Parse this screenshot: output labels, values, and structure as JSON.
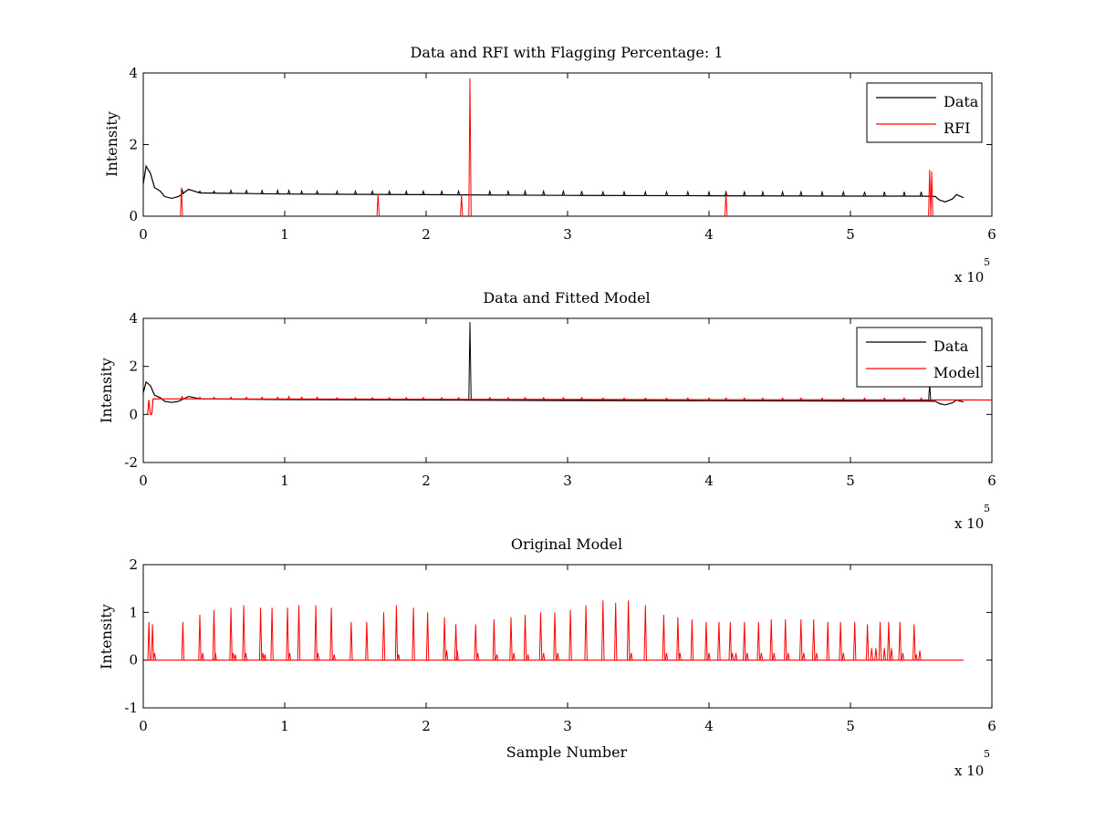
{
  "colors": {
    "data": "#000000",
    "rfi": "#ff0000",
    "model": "#ff0000",
    "background": "#ffffff"
  },
  "chart_data": [
    {
      "type": "line",
      "title": "Data and RFI with Flagging Percentage: 1",
      "xlabel": "",
      "ylabel": "Intensity",
      "xlim": [
        0,
        600000
      ],
      "ylim": [
        0,
        4
      ],
      "xticks": [
        0,
        1,
        2,
        3,
        4,
        5,
        6
      ],
      "yticks": [
        0,
        2,
        4
      ],
      "x_multiplier": {
        "base": "x 10",
        "exponent": "5"
      },
      "grid": false,
      "legend": {
        "placement": "top-right",
        "entries": [
          "Data",
          "RFI"
        ]
      },
      "series": [
        {
          "name": "Data",
          "color": "#000000",
          "baseline": [
            [
              0,
              0.9
            ],
            [
              2000,
              1.4
            ],
            [
              5000,
              1.2
            ],
            [
              8000,
              0.8
            ],
            [
              12000,
              0.7
            ],
            [
              15000,
              0.55
            ],
            [
              20000,
              0.5
            ],
            [
              25000,
              0.55
            ],
            [
              32000,
              0.75
            ],
            [
              40000,
              0.65
            ],
            [
              100000,
              0.62
            ],
            [
              200000,
              0.6
            ],
            [
              300000,
              0.58
            ],
            [
              400000,
              0.57
            ],
            [
              500000,
              0.56
            ],
            [
              550000,
              0.56
            ],
            [
              560000,
              0.55
            ],
            [
              563000,
              0.45
            ],
            [
              567000,
              0.4
            ],
            [
              572000,
              0.48
            ],
            [
              575000,
              0.6
            ],
            [
              578000,
              0.55
            ],
            [
              580000,
              0.52
            ]
          ],
          "spikes": [
            [
              27500,
              0.75
            ],
            [
              40000,
              0.7
            ],
            [
              50000,
              0.7
            ],
            [
              62000,
              0.72
            ],
            [
              73000,
              0.72
            ],
            [
              84000,
              0.72
            ],
            [
              95000,
              0.72
            ],
            [
              103000,
              0.72
            ],
            [
              112000,
              0.7
            ],
            [
              123000,
              0.7
            ],
            [
              137000,
              0.7
            ],
            [
              150000,
              0.7
            ],
            [
              162000,
              0.7
            ],
            [
              174000,
              0.7
            ],
            [
              186000,
              0.7
            ],
            [
              198000,
              0.7
            ],
            [
              211000,
              0.7
            ],
            [
              223000,
              0.7
            ],
            [
              245000,
              0.7
            ],
            [
              258000,
              0.7
            ],
            [
              270000,
              0.7
            ],
            [
              283000,
              0.7
            ],
            [
              297000,
              0.7
            ],
            [
              310000,
              0.7
            ],
            [
              325000,
              0.68
            ],
            [
              340000,
              0.68
            ],
            [
              355000,
              0.68
            ],
            [
              370000,
              0.68
            ],
            [
              385000,
              0.68
            ],
            [
              400000,
              0.68
            ],
            [
              412000,
              0.68
            ],
            [
              425000,
              0.68
            ],
            [
              438000,
              0.68
            ],
            [
              452000,
              0.68
            ],
            [
              465000,
              0.68
            ],
            [
              480000,
              0.68
            ],
            [
              495000,
              0.68
            ],
            [
              510000,
              0.68
            ],
            [
              524000,
              0.68
            ],
            [
              538000,
              0.68
            ],
            [
              550000,
              0.68
            ]
          ]
        },
        {
          "name": "RFI",
          "color": "#ff0000",
          "spikes": [
            [
              231000,
              3.85
            ],
            [
              556000,
              1.3
            ],
            [
              557500,
              1.25
            ],
            [
              27000,
              0.8
            ],
            [
              166000,
              0.62
            ],
            [
              412000,
              0.65
            ],
            [
              225000,
              0.6
            ]
          ]
        }
      ]
    },
    {
      "type": "line",
      "title": "Data and Fitted Model",
      "xlabel": "",
      "ylabel": "Intensity",
      "xlim": [
        0,
        600000
      ],
      "ylim": [
        -2,
        4
      ],
      "xticks": [
        0,
        1,
        2,
        3,
        4,
        5,
        6
      ],
      "yticks": [
        -2,
        0,
        2,
        4
      ],
      "x_multiplier": {
        "base": "x 10",
        "exponent": "5"
      },
      "grid": false,
      "legend": {
        "placement": "top-right",
        "entries": [
          "Data",
          "Model"
        ]
      },
      "series": [
        {
          "name": "Data",
          "color": "#000000",
          "baseline": [
            [
              0,
              0.9
            ],
            [
              2000,
              1.35
            ],
            [
              5000,
              1.2
            ],
            [
              8000,
              0.8
            ],
            [
              12000,
              0.7
            ],
            [
              15000,
              0.55
            ],
            [
              20000,
              0.5
            ],
            [
              25000,
              0.55
            ],
            [
              32000,
              0.75
            ],
            [
              40000,
              0.65
            ],
            [
              100000,
              0.62
            ],
            [
              200000,
              0.6
            ],
            [
              300000,
              0.58
            ],
            [
              400000,
              0.57
            ],
            [
              500000,
              0.56
            ],
            [
              550000,
              0.56
            ],
            [
              560000,
              0.55
            ],
            [
              563000,
              0.45
            ],
            [
              567000,
              0.4
            ],
            [
              572000,
              0.48
            ],
            [
              575000,
              0.6
            ],
            [
              578000,
              0.55
            ],
            [
              580000,
              0.52
            ]
          ],
          "spikes": [
            [
              231000,
              3.85
            ],
            [
              556000,
              1.3
            ]
          ]
        },
        {
          "name": "Model",
          "color": "#ff0000",
          "baseline": [
            [
              3000,
              0.0
            ],
            [
              4000,
              0.6
            ],
            [
              5000,
              0.0
            ],
            [
              6000,
              0.0
            ],
            [
              7000,
              0.65
            ],
            [
              600000,
              0.6
            ]
          ],
          "spikes": [
            [
              27500,
              0.75
            ],
            [
              40000,
              0.72
            ],
            [
              50000,
              0.72
            ],
            [
              62000,
              0.72
            ],
            [
              73000,
              0.72
            ],
            [
              84000,
              0.72
            ],
            [
              95000,
              0.72
            ],
            [
              103000,
              0.75
            ],
            [
              112000,
              0.72
            ],
            [
              123000,
              0.72
            ],
            [
              137000,
              0.7
            ],
            [
              150000,
              0.7
            ],
            [
              162000,
              0.7
            ],
            [
              174000,
              0.7
            ],
            [
              186000,
              0.7
            ],
            [
              198000,
              0.7
            ],
            [
              211000,
              0.7
            ],
            [
              223000,
              0.7
            ],
            [
              245000,
              0.7
            ],
            [
              258000,
              0.7
            ],
            [
              270000,
              0.7
            ],
            [
              283000,
              0.7
            ],
            [
              297000,
              0.7
            ],
            [
              310000,
              0.7
            ],
            [
              325000,
              0.68
            ],
            [
              340000,
              0.68
            ],
            [
              355000,
              0.68
            ],
            [
              370000,
              0.68
            ],
            [
              385000,
              0.68
            ],
            [
              400000,
              0.68
            ],
            [
              412000,
              0.68
            ],
            [
              425000,
              0.68
            ],
            [
              438000,
              0.68
            ],
            [
              452000,
              0.68
            ],
            [
              465000,
              0.68
            ],
            [
              480000,
              0.68
            ],
            [
              495000,
              0.68
            ],
            [
              510000,
              0.68
            ],
            [
              524000,
              0.68
            ],
            [
              538000,
              0.68
            ],
            [
              550000,
              0.68
            ]
          ]
        }
      ]
    },
    {
      "type": "line",
      "title": "Original Model",
      "xlabel": "Sample Number",
      "ylabel": "Intensity",
      "xlim": [
        0,
        600000
      ],
      "ylim": [
        -1,
        2
      ],
      "xticks": [
        0,
        1,
        2,
        3,
        4,
        5,
        6
      ],
      "yticks": [
        -1,
        0,
        1,
        2
      ],
      "x_multiplier": {
        "base": "x 10",
        "exponent": "5"
      },
      "grid": false,
      "series": [
        {
          "color": "#ff0000",
          "baseline": [
            [
              2000,
              0
            ],
            [
              580000,
              0
            ]
          ],
          "spikes": [
            [
              4000,
              0.8
            ],
            [
              6500,
              0.75
            ],
            [
              8000,
              0.15
            ],
            [
              28000,
              0.8
            ],
            [
              40000,
              0.95
            ],
            [
              42000,
              0.15
            ],
            [
              50000,
              1.05
            ],
            [
              51000,
              0.15
            ],
            [
              62000,
              1.1
            ],
            [
              63500,
              0.15
            ],
            [
              65000,
              0.12
            ],
            [
              71000,
              1.15
            ],
            [
              72500,
              0.15
            ],
            [
              83000,
              1.1
            ],
            [
              84500,
              0.15
            ],
            [
              86000,
              0.12
            ],
            [
              91000,
              1.1
            ],
            [
              102000,
              1.1
            ],
            [
              103500,
              0.15
            ],
            [
              110000,
              1.15
            ],
            [
              122000,
              1.15
            ],
            [
              123500,
              0.15
            ],
            [
              133000,
              1.1
            ],
            [
              135000,
              0.12
            ],
            [
              147000,
              0.8
            ],
            [
              158000,
              0.8
            ],
            [
              170000,
              1.0
            ],
            [
              179000,
              1.15
            ],
            [
              180500,
              0.12
            ],
            [
              191000,
              1.1
            ],
            [
              201000,
              1.0
            ],
            [
              213000,
              0.9
            ],
            [
              214500,
              0.2
            ],
            [
              221000,
              0.75
            ],
            [
              222000,
              0.2
            ],
            [
              235000,
              0.75
            ],
            [
              236500,
              0.15
            ],
            [
              248000,
              0.85
            ],
            [
              250000,
              0.12
            ],
            [
              260000,
              0.9
            ],
            [
              262000,
              0.15
            ],
            [
              270000,
              0.95
            ],
            [
              272000,
              0.12
            ],
            [
              281000,
              1.0
            ],
            [
              283000,
              0.15
            ],
            [
              291000,
              1.0
            ],
            [
              293000,
              0.15
            ],
            [
              302000,
              1.05
            ],
            [
              313000,
              1.15
            ],
            [
              325000,
              1.25
            ],
            [
              334000,
              1.2
            ],
            [
              343000,
              1.25
            ],
            [
              345000,
              0.15
            ],
            [
              355000,
              1.15
            ],
            [
              368000,
              0.95
            ],
            [
              370000,
              0.15
            ],
            [
              378000,
              0.9
            ],
            [
              379500,
              0.15
            ],
            [
              388000,
              0.85
            ],
            [
              398000,
              0.8
            ],
            [
              400000,
              0.15
            ],
            [
              407000,
              0.8
            ],
            [
              415000,
              0.8
            ],
            [
              416500,
              0.15
            ],
            [
              419000,
              0.15
            ],
            [
              425000,
              0.8
            ],
            [
              427000,
              0.15
            ],
            [
              435000,
              0.8
            ],
            [
              437000,
              0.15
            ],
            [
              444000,
              0.85
            ],
            [
              446000,
              0.15
            ],
            [
              454000,
              0.85
            ],
            [
              456000,
              0.15
            ],
            [
              465000,
              0.85
            ],
            [
              467000,
              0.15
            ],
            [
              474000,
              0.85
            ],
            [
              476000,
              0.15
            ],
            [
              484000,
              0.8
            ],
            [
              493000,
              0.8
            ],
            [
              495000,
              0.15
            ],
            [
              503000,
              0.8
            ],
            [
              512000,
              0.75
            ],
            [
              515000,
              0.25
            ],
            [
              518000,
              0.25
            ],
            [
              521000,
              0.8
            ],
            [
              524000,
              0.25
            ],
            [
              527000,
              0.8
            ],
            [
              529000,
              0.25
            ],
            [
              535000,
              0.8
            ],
            [
              537000,
              0.15
            ],
            [
              545000,
              0.75
            ],
            [
              546500,
              0.12
            ],
            [
              549000,
              0.2
            ]
          ]
        }
      ]
    }
  ]
}
